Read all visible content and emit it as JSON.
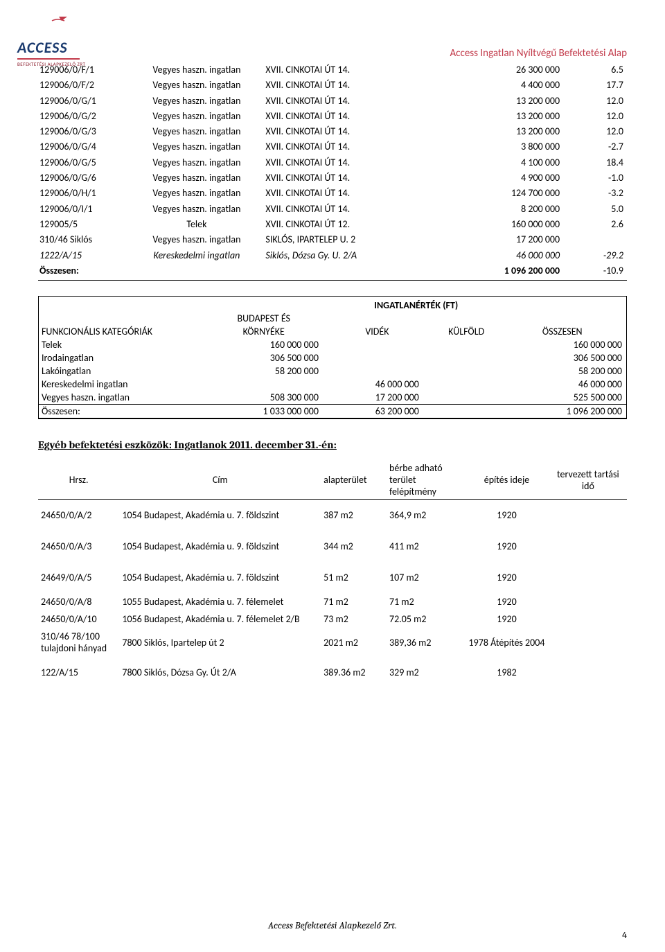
{
  "header": {
    "logo_main": "ACCESS",
    "logo_sub": "BEFEKTETÉSI ALAPKEZELŐ ZRT",
    "doc_title": "Access Ingatlan Nyíltvégű Befektetési Alap"
  },
  "table1": {
    "rows": [
      {
        "id": "129006/0/F/1",
        "type": "Vegyes haszn. ingatlan",
        "addr": "XVII. CINKOTAI ÚT 14.",
        "val": "26 300 000",
        "chg": "6.5"
      },
      {
        "id": "129006/0/F/2",
        "type": "Vegyes haszn. ingatlan",
        "addr": "XVII. CINKOTAI ÚT 14.",
        "val": "4 400 000",
        "chg": "17.7"
      },
      {
        "id": "129006/0/G/1",
        "type": "Vegyes haszn. ingatlan",
        "addr": "XVII. CINKOTAI ÚT 14.",
        "val": "13 200 000",
        "chg": "12.0"
      },
      {
        "id": "129006/0/G/2",
        "type": "Vegyes haszn. ingatlan",
        "addr": "XVII. CINKOTAI ÚT 14.",
        "val": "13 200 000",
        "chg": "12.0"
      },
      {
        "id": "129006/0/G/3",
        "type": "Vegyes haszn. ingatlan",
        "addr": "XVII. CINKOTAI ÚT 14.",
        "val": "13 200 000",
        "chg": "12.0"
      },
      {
        "id": "129006/0/G/4",
        "type": "Vegyes haszn. ingatlan",
        "addr": "XVII. CINKOTAI ÚT 14.",
        "val": "3 800 000",
        "chg": "-2.7"
      },
      {
        "id": "129006/0/G/5",
        "type": "Vegyes haszn. ingatlan",
        "addr": "XVII. CINKOTAI ÚT 14.",
        "val": "4 100 000",
        "chg": "18.4"
      },
      {
        "id": "129006/0/G/6",
        "type": "Vegyes haszn. ingatlan",
        "addr": "XVII. CINKOTAI ÚT 14.",
        "val": "4 900 000",
        "chg": "-1.0"
      },
      {
        "id": "129006/0/H/1",
        "type": "Vegyes haszn. ingatlan",
        "addr": "XVII. CINKOTAI ÚT 14.",
        "val": "124 700 000",
        "chg": "-3.2"
      },
      {
        "id": "129006/0/I/1",
        "type": "Vegyes haszn. ingatlan",
        "addr": "XVII. CINKOTAI ÚT 14.",
        "val": "8 200 000",
        "chg": "5.0"
      },
      {
        "id": "129005/5",
        "type": "Telek",
        "addr": "XVII. CINKOTAI ÚT 12.",
        "val": "160 000 000",
        "chg": "2.6"
      },
      {
        "id": "310/46 Siklós",
        "type": "Vegyes haszn. ingatlan",
        "addr": "SIKLÓS, IPARTELEP U. 2",
        "val": "17 200 000",
        "chg": ""
      },
      {
        "id": "1222/A/15",
        "type": "Kereskedelmi ingatlan",
        "addr": "Siklós, Dózsa Gy. U. 2/A",
        "val": "46 000 000",
        "chg": "-29.2",
        "italic": true
      }
    ],
    "total": {
      "label": "Összesen:",
      "val": "1 096 200 000",
      "chg": "-10.9"
    }
  },
  "table2": {
    "title": "INGATLANÉRTÉK (FT)",
    "headers": {
      "c1": "FUNKCIONÁLIS KATEGÓRIÁK",
      "c2a": "BUDAPEST ÉS",
      "c2b": "KÖRNYÉKE",
      "c3": "VIDÉK",
      "c4": "KÜLFÖLD",
      "c5": "ÖSSZESEN"
    },
    "rows": [
      {
        "cat": "Telek",
        "bp": "160 000 000",
        "videk": "",
        "kulf": "",
        "ossz": "160 000 000"
      },
      {
        "cat": "Irodaingatlan",
        "bp": "306 500 000",
        "videk": "",
        "kulf": "",
        "ossz": "306 500 000"
      },
      {
        "cat": "Lakóingatlan",
        "bp": "58 200 000",
        "videk": "",
        "kulf": "",
        "ossz": "58 200 000"
      },
      {
        "cat": "Kereskedelmi ingatlan",
        "bp": "",
        "videk": "46 000 000",
        "kulf": "",
        "ossz": "46 000 000"
      },
      {
        "cat": "Vegyes haszn. ingatlan",
        "bp": "508 300 000",
        "videk": "17 200 000",
        "kulf": "",
        "ossz": "525 500 000"
      }
    ],
    "total": {
      "cat": "Összesen:",
      "bp": "1 033 000 000",
      "videk": "63 200 000",
      "kulf": "",
      "ossz": "1 096 200 000"
    }
  },
  "section_title": "Egyéb befektetési eszközök: Ingatlanok 2011. december 31.-én:",
  "table3": {
    "headers": {
      "c1": "Hrsz.",
      "c2": "Cím",
      "c3": "alapterület",
      "c4": "bérbe adható terület felépítmény",
      "c5": "építés ideje",
      "c6": "tervezett tartási idő"
    },
    "rows": [
      {
        "hrsz": "24650/0/A/2",
        "cim": "1054 Budapest, Akadémia u. 7. földszint",
        "alap": "387 m2",
        "berbe": "364,9 m2",
        "ev": "1920",
        "tart": "",
        "sp": true
      },
      {
        "hrsz": "24650/0/A/3",
        "cim": "1054 Budapest, Akadémia u. 9. földszint",
        "alap": "344 m2",
        "berbe": "411 m2",
        "ev": "1920",
        "tart": "",
        "sp": true
      },
      {
        "hrsz": "24649/0/A/5",
        "cim": "1054 Budapest, Akadémia u. 7. földszint",
        "alap": "51 m2",
        "berbe": "107 m2",
        "ev": "1920",
        "tart": "",
        "sp": true
      },
      {
        "hrsz": "24650/0/A/8",
        "cim": "1055 Budapest, Akadémia u. 7. félemelet",
        "alap": "71 m2",
        "berbe": "71 m2",
        "ev": "1920",
        "tart": ""
      },
      {
        "hrsz": "24650/0/A/10",
        "cim": "1056 Budapest, Akadémia u. 7. félemelet 2/B",
        "alap": "73 m2",
        "berbe": "72.05 m2",
        "ev": "1920",
        "tart": ""
      },
      {
        "hrsz": "310/46 78/100 tulajdoni hányad",
        "cim": "7800 Siklós, Ipartelep út 2",
        "alap": "2021 m2",
        "berbe": "389,36 m2",
        "ev": "1978 Átépítés 2004",
        "tart": ""
      },
      {
        "hrsz": "122/A/15",
        "cim": "7800 Siklós, Dózsa Gy. Út 2/A",
        "alap": "389.36 m2",
        "berbe": "329 m2",
        "ev": "1982",
        "tart": "",
        "sp": true
      }
    ]
  },
  "footer": "Access Befektetési Alapkezelő Zrt.",
  "page_number": "4"
}
